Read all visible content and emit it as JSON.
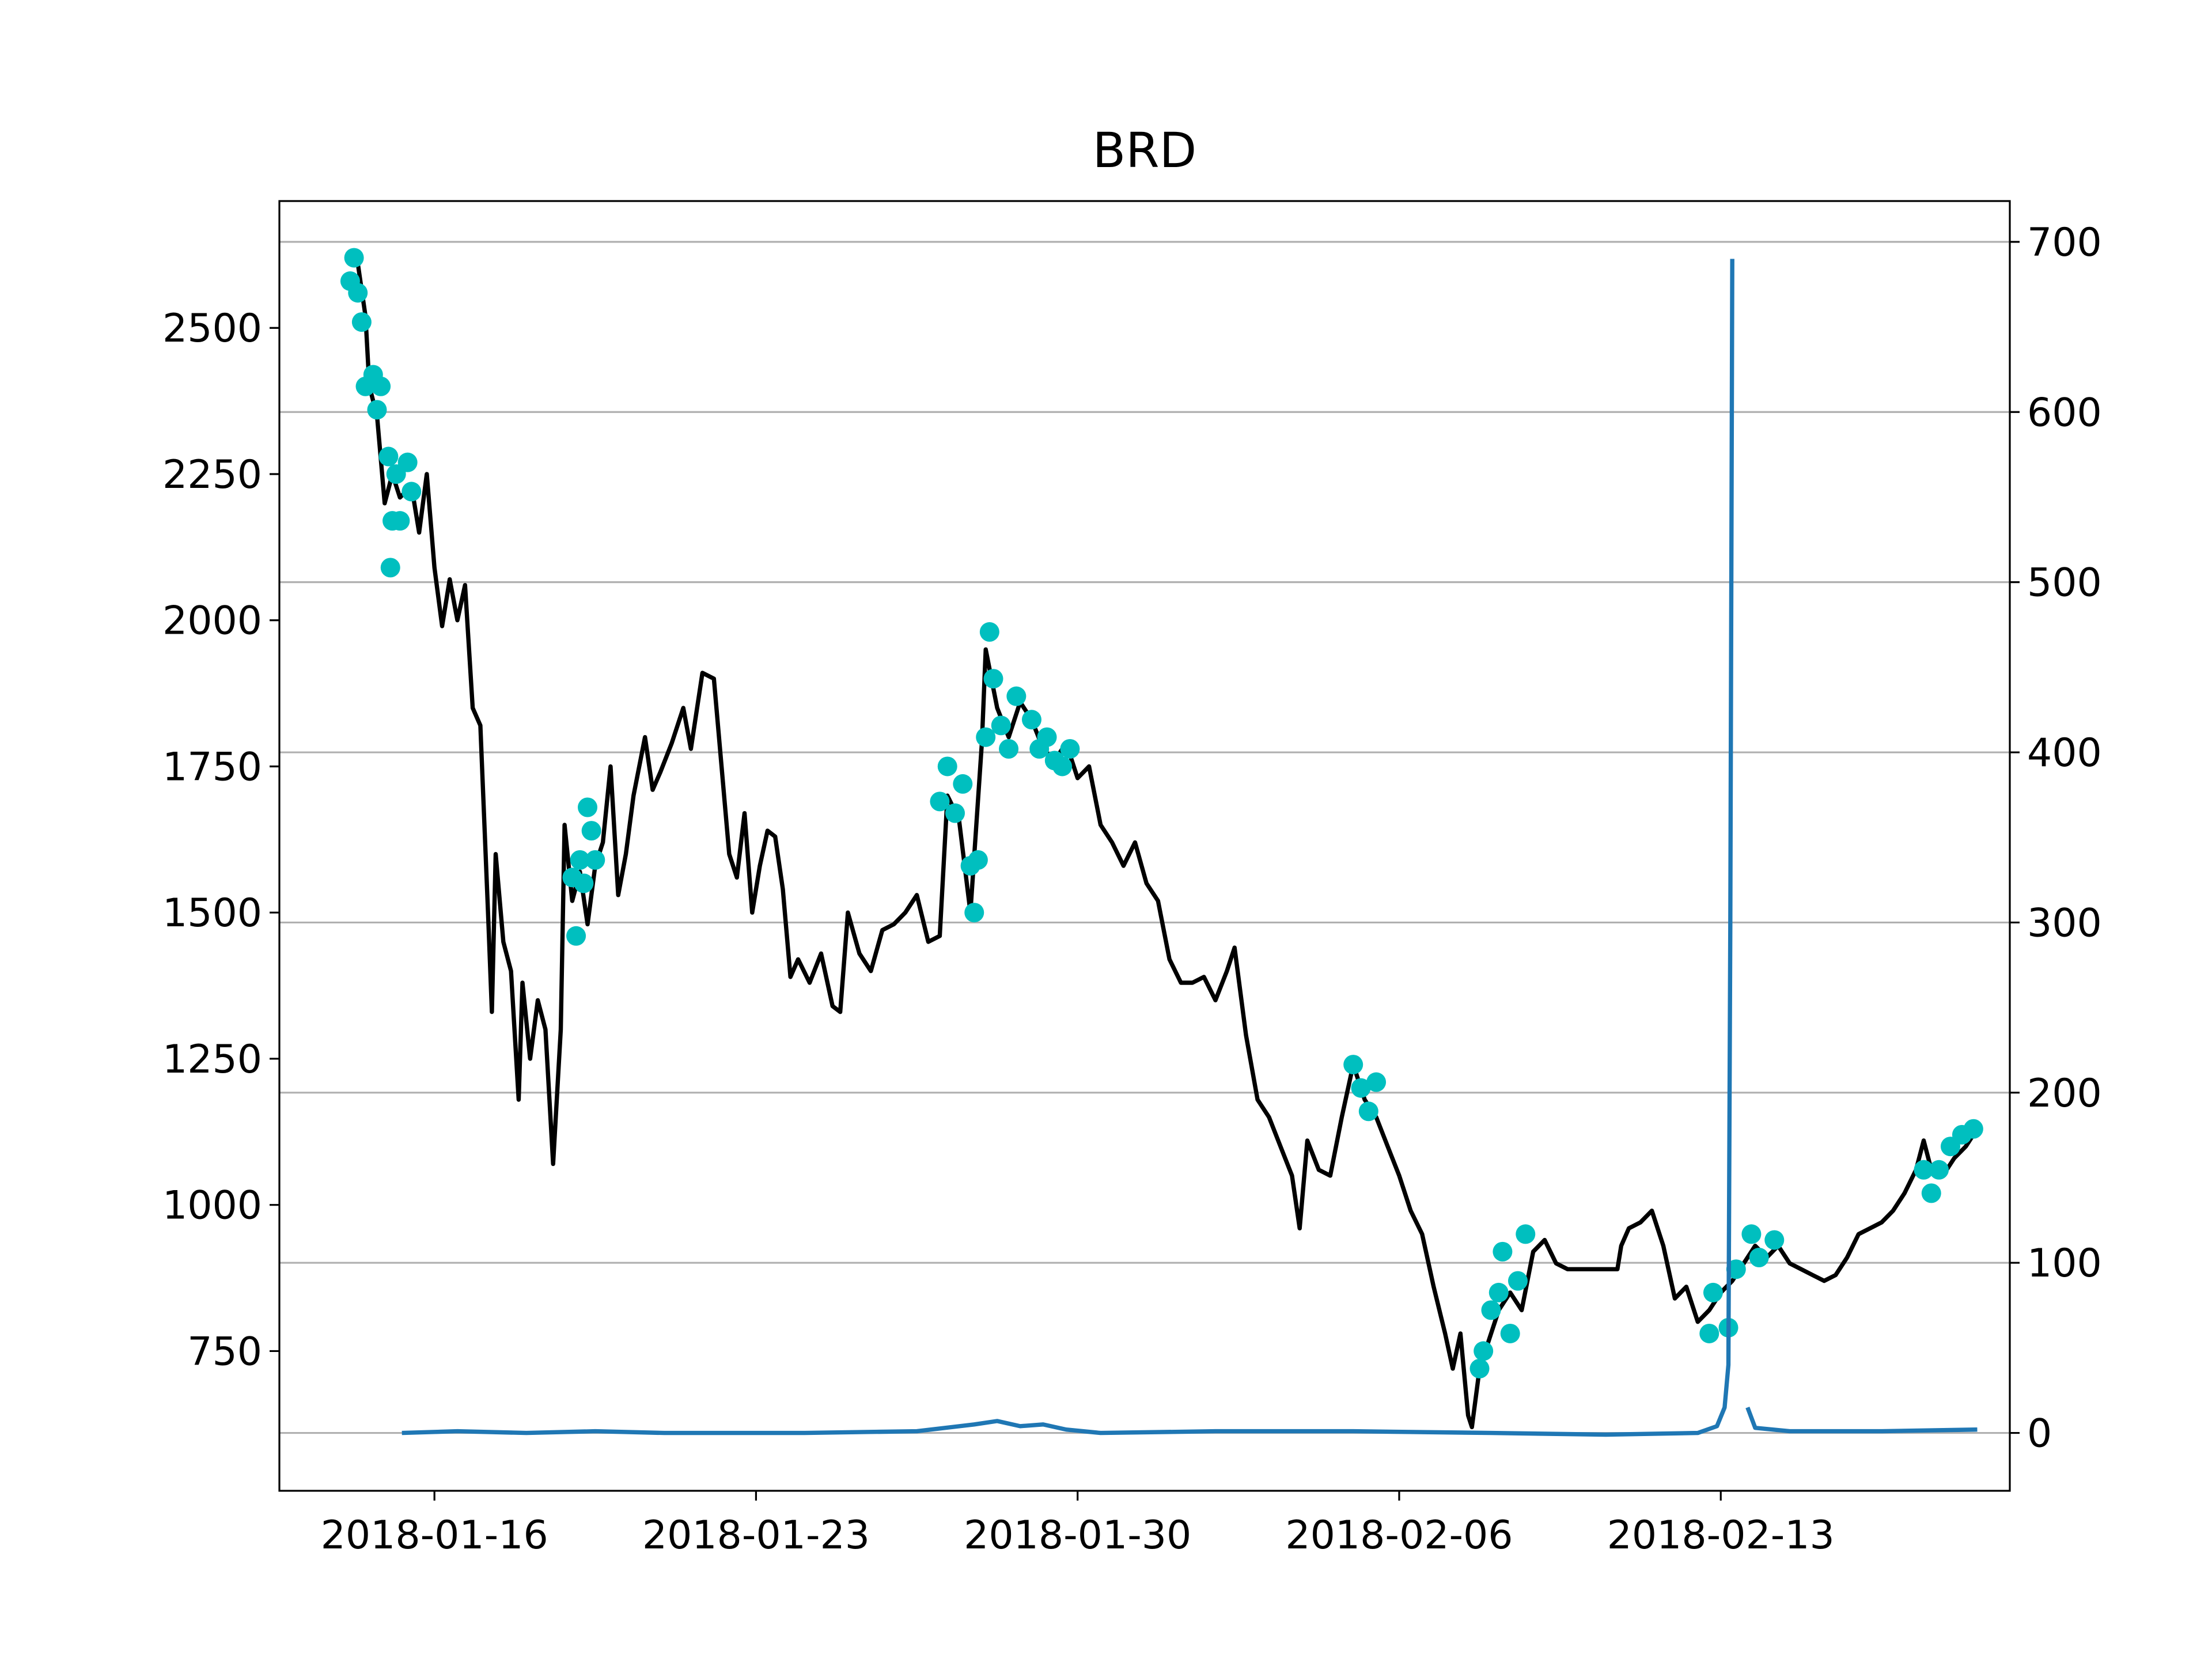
{
  "chart_data": {
    "type": "line",
    "title": "BRD",
    "xlim": [
      "2018-01-12 15:00",
      "2018-02-19 07:00"
    ],
    "xticks": [
      "2018-01-16",
      "2018-01-23",
      "2018-01-30",
      "2018-02-06",
      "2018-02-13"
    ],
    "ylim": [
      511,
      2717
    ],
    "yticks": [
      750,
      1000,
      1250,
      1500,
      1750,
      2000,
      2250,
      2500
    ],
    "y2lim": [
      -34,
      724
    ],
    "y2ticks": [
      0,
      100,
      200,
      300,
      400,
      500,
      600,
      700
    ],
    "grid": true,
    "grid_axis": "y2",
    "series": [
      {
        "type": "line",
        "color": "#000000",
        "x": [
          "2018-01-14 08:00",
          "2018-01-14 12:00",
          "2018-01-14 14:00",
          "2018-01-14 18:00",
          "2018-01-14 22:00",
          "2018-01-15 02:00",
          "2018-01-15 06:00",
          "2018-01-15 12:00",
          "2018-01-15 16:00",
          "2018-01-15 20:00",
          "2018-01-16 00:00",
          "2018-01-16 04:00",
          "2018-01-16 08:00",
          "2018-01-16 12:00",
          "2018-01-16 16:00",
          "2018-01-16 20:00",
          "2018-01-17 00:00",
          "2018-01-17 04:00",
          "2018-01-17 06:00",
          "2018-01-17 08:00",
          "2018-01-17 12:00",
          "2018-01-17 16:00",
          "2018-01-17 20:00",
          "2018-01-17 22:00",
          "2018-01-18 02:00",
          "2018-01-18 06:00",
          "2018-01-18 10:00",
          "2018-01-18 14:00",
          "2018-01-18 18:00",
          "2018-01-18 20:00",
          "2018-01-19 00:00",
          "2018-01-19 04:00",
          "2018-01-19 08:00",
          "2018-01-19 12:00",
          "2018-01-19 16:00",
          "2018-01-19 20:00",
          "2018-01-20 00:00",
          "2018-01-20 04:00",
          "2018-01-20 08:00",
          "2018-01-20 14:00",
          "2018-01-20 18:00",
          "2018-01-20 22:00",
          "2018-01-21 04:00",
          "2018-01-21 10:00",
          "2018-01-21 14:00",
          "2018-01-21 20:00",
          "2018-01-22 02:00",
          "2018-01-22 06:00",
          "2018-01-22 10:00",
          "2018-01-22 14:00",
          "2018-01-22 18:00",
          "2018-01-22 22:00",
          "2018-01-23 02:00",
          "2018-01-23 06:00",
          "2018-01-23 10:00",
          "2018-01-23 14:00",
          "2018-01-23 18:00",
          "2018-01-23 22:00",
          "2018-01-24 04:00",
          "2018-01-24 10:00",
          "2018-01-24 16:00",
          "2018-01-24 20:00",
          "2018-01-25 00:00",
          "2018-01-25 06:00",
          "2018-01-25 12:00",
          "2018-01-25 18:00",
          "2018-01-26 00:00",
          "2018-01-26 06:00",
          "2018-01-26 12:00",
          "2018-01-26 18:00",
          "2018-01-27 00:00",
          "2018-01-27 04:00",
          "2018-01-27 10:00",
          "2018-01-27 16:00",
          "2018-01-27 22:00",
          "2018-01-28 00:00",
          "2018-01-28 06:00",
          "2018-01-28 12:00",
          "2018-01-28 18:00",
          "2018-01-29 00:00",
          "2018-01-29 06:00",
          "2018-01-29 12:00",
          "2018-01-29 18:00",
          "2018-01-30 00:00",
          "2018-01-30 06:00",
          "2018-01-30 12:00",
          "2018-01-30 18:00",
          "2018-01-31 00:00",
          "2018-01-31 06:00",
          "2018-01-31 12:00",
          "2018-01-31 18:00",
          "2018-02-01 00:00",
          "2018-02-01 06:00",
          "2018-02-01 12:00",
          "2018-02-01 18:00",
          "2018-02-02 00:00",
          "2018-02-02 06:00",
          "2018-02-02 10:00",
          "2018-02-02 16:00",
          "2018-02-02 22:00",
          "2018-02-03 04:00",
          "2018-02-03 10:00",
          "2018-02-03 16:00",
          "2018-02-03 20:00",
          "2018-02-04 00:00",
          "2018-02-04 06:00",
          "2018-02-04 12:00",
          "2018-02-04 18:00",
          "2018-02-05 00:00",
          "2018-02-05 06:00",
          "2018-02-05 12:00",
          "2018-02-05 18:00",
          "2018-02-06 00:00",
          "2018-02-06 06:00",
          "2018-02-06 12:00",
          "2018-02-06 18:00",
          "2018-02-07 00:00",
          "2018-02-07 04:00",
          "2018-02-07 08:00",
          "2018-02-07 12:00",
          "2018-02-07 14:00",
          "2018-02-07 18:00",
          "2018-02-07 22:00",
          "2018-02-08 04:00",
          "2018-02-08 10:00",
          "2018-02-08 16:00",
          "2018-02-08 22:00",
          "2018-02-09 04:00",
          "2018-02-09 10:00",
          "2018-02-09 16:00",
          "2018-02-10 18:00",
          "2018-02-10 20:00",
          "2018-02-11 00:00",
          "2018-02-11 06:00",
          "2018-02-11 12:00",
          "2018-02-11 18:00",
          "2018-02-12 00:00",
          "2018-02-12 06:00",
          "2018-02-12 12:00",
          "2018-02-12 18:00",
          "2018-02-13 00:00",
          "2018-02-13 06:00",
          "2018-02-13 12:00",
          "2018-02-13 18:00",
          "2018-02-14 00:00",
          "2018-02-14 06:00",
          "2018-02-14 12:00",
          "2018-02-14 18:00",
          "2018-02-15 00:00",
          "2018-02-15 06:00",
          "2018-02-15 12:00",
          "2018-02-15 18:00",
          "2018-02-16 00:00",
          "2018-02-16 06:00",
          "2018-02-16 12:00",
          "2018-02-16 18:00",
          "2018-02-17 00:00",
          "2018-02-17 06:00",
          "2018-02-17 10:00",
          "2018-02-17 14:00",
          "2018-02-17 20:00",
          "2018-02-18 02:00",
          "2018-02-18 08:00",
          "2018-02-18 14:00"
        ],
        "values": [
          2610,
          2520,
          2400,
          2350,
          2200,
          2250,
          2210,
          2230,
          2150,
          2250,
          2090,
          1990,
          2070,
          2000,
          2060,
          1850,
          1820,
          1500,
          1330,
          1600,
          1450,
          1400,
          1180,
          1380,
          1250,
          1350,
          1300,
          1070,
          1300,
          1650,
          1520,
          1570,
          1480,
          1580,
          1620,
          1750,
          1530,
          1600,
          1700,
          1800,
          1710,
          1740,
          1790,
          1850,
          1780,
          1910,
          1900,
          1750,
          1600,
          1560,
          1670,
          1500,
          1580,
          1640,
          1630,
          1540,
          1390,
          1420,
          1380,
          1430,
          1340,
          1330,
          1500,
          1430,
          1400,
          1470,
          1480,
          1500,
          1530,
          1450,
          1460,
          1700,
          1660,
          1500,
          1790,
          1950,
          1850,
          1800,
          1860,
          1830,
          1780,
          1760,
          1790,
          1730,
          1750,
          1650,
          1620,
          1580,
          1620,
          1550,
          1520,
          1420,
          1380,
          1380,
          1390,
          1350,
          1400,
          1440,
          1290,
          1180,
          1150,
          1100,
          1050,
          960,
          1110,
          1060,
          1050,
          1150,
          1240,
          1180,
          1150,
          1100,
          1050,
          990,
          950,
          860,
          780,
          720,
          780,
          640,
          620,
          720,
          760,
          820,
          850,
          820,
          920,
          940,
          900,
          890,
          890,
          930,
          960,
          970,
          990,
          930,
          840,
          860,
          800,
          820,
          850,
          870,
          900,
          930,
          910,
          930,
          900,
          890,
          880,
          870,
          880,
          910,
          950,
          960,
          970,
          990,
          1020,
          1060,
          1110,
          1060,
          1050,
          1080,
          1100,
          1130
        ]
      },
      {
        "type": "scatter",
        "color": "#00bfbf",
        "x": [
          "2018-01-14 04:00",
          "2018-01-14 06:00",
          "2018-01-14 08:00",
          "2018-01-14 10:00",
          "2018-01-14 12:00",
          "2018-01-14 16:00",
          "2018-01-14 18:00",
          "2018-01-14 20:00",
          "2018-01-15 00:00",
          "2018-01-15 01:00",
          "2018-01-15 02:00",
          "2018-01-15 04:00",
          "2018-01-15 06:00",
          "2018-01-15 10:00",
          "2018-01-15 12:00",
          "2018-01-19 00:00",
          "2018-01-19 02:00",
          "2018-01-19 04:00",
          "2018-01-19 06:00",
          "2018-01-19 08:00",
          "2018-01-19 10:00",
          "2018-01-19 12:00",
          "2018-01-27 00:00",
          "2018-01-27 04:00",
          "2018-01-27 08:00",
          "2018-01-27 12:00",
          "2018-01-27 16:00",
          "2018-01-27 18:00",
          "2018-01-27 20:00",
          "2018-01-28 00:00",
          "2018-01-28 02:00",
          "2018-01-28 04:00",
          "2018-01-28 08:00",
          "2018-01-28 12:00",
          "2018-01-28 16:00",
          "2018-01-29 00:00",
          "2018-01-29 04:00",
          "2018-01-29 08:00",
          "2018-01-29 12:00",
          "2018-01-29 16:00",
          "2018-01-29 20:00",
          "2018-02-05 00:00",
          "2018-02-05 04:00",
          "2018-02-05 08:00",
          "2018-02-05 12:00",
          "2018-02-07 18:00",
          "2018-02-07 20:00",
          "2018-02-08 00:00",
          "2018-02-08 04:00",
          "2018-02-08 06:00",
          "2018-02-08 10:00",
          "2018-02-08 14:00",
          "2018-02-08 18:00",
          "2018-02-12 18:00",
          "2018-02-12 20:00",
          "2018-02-13 04:00",
          "2018-02-13 08:00",
          "2018-02-13 16:00",
          "2018-02-13 20:00",
          "2018-02-14 04:00",
          "2018-02-17 10:00",
          "2018-02-17 14:00",
          "2018-02-17 18:00",
          "2018-02-18 00:00",
          "2018-02-18 06:00",
          "2018-02-18 12:00"
        ],
        "values": [
          2580,
          2620,
          2560,
          2510,
          2400,
          2420,
          2360,
          2400,
          2280,
          2090,
          2170,
          2250,
          2170,
          2270,
          2220,
          1560,
          1460,
          1590,
          1550,
          1680,
          1640,
          1590,
          1690,
          1750,
          1670,
          1720,
          1580,
          1500,
          1590,
          1800,
          1980,
          1900,
          1820,
          1780,
          1870,
          1830,
          1780,
          1800,
          1760,
          1750,
          1780,
          1240,
          1200,
          1160,
          1210,
          720,
          750,
          820,
          850,
          920,
          780,
          870,
          950,
          780,
          850,
          790,
          890,
          950,
          910,
          940,
          1060,
          1020,
          1060,
          1100,
          1120,
          1130
        ]
      },
      {
        "type": "line",
        "axis": "y2",
        "color": "#1f77b4",
        "x": [
          "2018-01-15 07:00",
          "2018-01-16 12:00",
          "2018-01-18 00:00",
          "2018-01-19 12:00",
          "2018-01-21 00:00",
          "2018-01-24 00:00",
          "2018-01-26 12:00",
          "2018-01-27 18:00",
          "2018-01-28 06:00",
          "2018-01-28 18:00",
          "2018-01-29 06:00",
          "2018-01-29 18:00",
          "2018-01-30 12:00",
          "2018-02-02 00:00",
          "2018-02-05 00:00",
          "2018-02-08 00:00",
          "2018-02-10 12:00",
          "2018-02-12 12:00",
          "2018-02-12 22:00",
          "2018-02-13 02:00",
          "2018-02-13 04:00",
          "2018-02-13 05:00",
          "2018-02-13 06:00",
          "2018-02-13 10:00",
          "2018-02-13 14:00",
          "2018-02-13 18:00",
          "2018-02-14 12:00",
          "2018-02-16 12:00",
          "2018-02-18 14:00"
        ],
        "values": [
          0,
          1,
          0,
          1,
          0,
          0,
          1,
          5,
          7,
          4,
          5,
          2,
          0,
          1,
          1,
          0,
          -1,
          0,
          4,
          15,
          40,
          300,
          690,
          null,
          15,
          3,
          1,
          1,
          2
        ]
      }
    ]
  }
}
